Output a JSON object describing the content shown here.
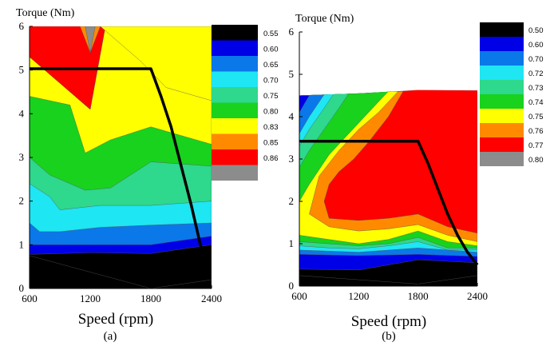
{
  "chart_data": [
    {
      "type": "contour",
      "caption": "(a)",
      "ylabel": "Torque (Nm)",
      "xlabel": "Speed (rpm)",
      "xlim": [
        600,
        2400
      ],
      "ylim": [
        0,
        6
      ],
      "x_ticks": [
        "600",
        "1200",
        "1800",
        "2400"
      ],
      "y_ticks": [
        "0",
        "1",
        "2",
        "3",
        "4",
        "5",
        "6"
      ],
      "levels": [
        {
          "label": "0.55",
          "color": "#000000"
        },
        {
          "label": "0.60",
          "color": "#0000e6"
        },
        {
          "label": "0.65",
          "color": "#0a78e8"
        },
        {
          "label": "0.70",
          "color": "#1ee6f2"
        },
        {
          "label": "0.75",
          "color": "#2ed88c"
        },
        {
          "label": "0.80",
          "color": "#18d21e"
        },
        {
          "label": "0.83",
          "color": "#ffff00"
        },
        {
          "label": "0.85",
          "color": "#ff8a00"
        },
        {
          "label": "0.86",
          "color": "#ff0000"
        },
        {
          "label": "",
          "color": "#8c8c8c"
        }
      ],
      "regions": [
        {
          "level": 6,
          "points": [
            [
              600,
              6
            ],
            [
              2400,
              6
            ],
            [
              2400,
              0
            ],
            [
              600,
              0
            ]
          ]
        },
        {
          "level": 7,
          "points": [
            [
              600,
              6
            ],
            [
              1350,
              6
            ],
            [
              1200,
              4.1
            ],
            [
              1000,
              4.5
            ],
            [
              600,
              5.3
            ]
          ]
        },
        {
          "level": 8,
          "points": [
            [
              600,
              6
            ],
            [
              1100,
              6
            ],
            [
              1200,
              5.4
            ],
            [
              1300,
              6
            ],
            [
              1350,
              6
            ],
            [
              1200,
              4.1
            ],
            [
              1000,
              4.5
            ],
            [
              600,
              5.3
            ]
          ]
        },
        {
          "level": 9,
          "points": [
            [
              1150,
              6
            ],
            [
              1200,
              5.4
            ],
            [
              1250,
              6
            ]
          ]
        },
        {
          "level": 6,
          "points": [
            [
              1500,
              6
            ],
            [
              2400,
              6
            ],
            [
              2400,
              4.3
            ],
            [
              1950,
              4.6
            ],
            [
              1700,
              5.2
            ],
            [
              1300,
              6
            ]
          ]
        },
        {
          "level": 5,
          "points": [
            [
              600,
              4.4
            ],
            [
              1000,
              4.2
            ],
            [
              1150,
              3.1
            ],
            [
              1400,
              3.4
            ],
            [
              1800,
              3.7
            ],
            [
              2400,
              3.3
            ],
            [
              2400,
              0
            ],
            [
              600,
              0
            ]
          ]
        },
        {
          "level": 4,
          "points": [
            [
              600,
              3.0
            ],
            [
              800,
              2.6
            ],
            [
              1000,
              2.4
            ],
            [
              1150,
              2.25
            ],
            [
              1400,
              2.3
            ],
            [
              1800,
              2.9
            ],
            [
              2400,
              2.8
            ],
            [
              2400,
              0
            ],
            [
              600,
              0
            ]
          ]
        },
        {
          "level": 3,
          "points": [
            [
              600,
              2.4
            ],
            [
              800,
              2.1
            ],
            [
              900,
              1.8
            ],
            [
              1300,
              1.9
            ],
            [
              1800,
              1.9
            ],
            [
              2400,
              2.0
            ],
            [
              2400,
              0
            ],
            [
              600,
              0
            ]
          ]
        },
        {
          "level": 2,
          "points": [
            [
              600,
              1.5
            ],
            [
              700,
              1.3
            ],
            [
              900,
              1.3
            ],
            [
              1300,
              1.4
            ],
            [
              1800,
              1.45
            ],
            [
              2400,
              1.5
            ],
            [
              2400,
              0
            ],
            [
              600,
              0
            ]
          ]
        },
        {
          "level": 1,
          "points": [
            [
              600,
              1.0
            ],
            [
              1200,
              1.0
            ],
            [
              1800,
              1.0
            ],
            [
              2400,
              1.2
            ],
            [
              2400,
              0
            ],
            [
              600,
              0
            ]
          ]
        },
        {
          "level": 0,
          "points": [
            [
              600,
              0.78
            ],
            [
              1200,
              0.82
            ],
            [
              1800,
              0.8
            ],
            [
              2400,
              1.0
            ],
            [
              2400,
              0
            ],
            [
              600,
              0
            ]
          ]
        },
        {
          "level": -1,
          "points": [
            [
              600,
              0.75
            ],
            [
              1800,
              0.0
            ],
            [
              600,
              0.0
            ]
          ]
        },
        {
          "level": -1,
          "points": [
            [
              1800,
              0
            ],
            [
              2400,
              0
            ],
            [
              2400,
              0.2
            ]
          ]
        }
      ],
      "boundary_curve": [
        [
          600,
          5.03
        ],
        [
          1800,
          5.03
        ],
        [
          1900,
          4.4
        ],
        [
          2000,
          3.7
        ],
        [
          2100,
          2.8
        ],
        [
          2200,
          1.9
        ],
        [
          2300,
          0.9
        ]
      ]
    },
    {
      "type": "contour",
      "caption": "(b)",
      "ylabel": "Torque (Nm)",
      "xlabel": "Speed (rpm)",
      "xlim": [
        600,
        2400
      ],
      "ylim": [
        0,
        6
      ],
      "x_ticks": [
        "600",
        "1200",
        "1800",
        "2400"
      ],
      "y_ticks": [
        "0",
        "1",
        "2",
        "3",
        "4",
        "5",
        "6"
      ],
      "levels": [
        {
          "label": "0.50",
          "color": "#000000"
        },
        {
          "label": "0.60",
          "color": "#0000e6"
        },
        {
          "label": "0.70",
          "color": "#0a78e8"
        },
        {
          "label": "0.72",
          "color": "#1ee6f2"
        },
        {
          "label": "0.73",
          "color": "#2ed88c"
        },
        {
          "label": "0.74",
          "color": "#18d21e"
        },
        {
          "label": "0.75",
          "color": "#ffff00"
        },
        {
          "label": "0.76",
          "color": "#ff8a00"
        },
        {
          "label": "0.77",
          "color": "#ff0000"
        },
        {
          "label": "0.80",
          "color": "#8c8c8c"
        }
      ],
      "envelope_top": [
        [
          600,
          4.5
        ],
        [
          1200,
          4.55
        ],
        [
          1800,
          4.63
        ],
        [
          2400,
          4.62
        ]
      ],
      "regions": [
        {
          "level": 8,
          "points": [
            [
              600,
              4.5
            ],
            [
              1200,
              4.55
            ],
            [
              1800,
              4.63
            ],
            [
              2400,
              4.62
            ],
            [
              2400,
              0
            ],
            [
              600,
              0
            ]
          ]
        },
        {
          "level": 7,
          "points": [
            [
              600,
              4.5
            ],
            [
              1200,
              4.55
            ],
            [
              1650,
              4.6
            ],
            [
              1500,
              4.0
            ],
            [
              1300,
              3.4
            ],
            [
              1150,
              3.0
            ],
            [
              1000,
              2.7
            ],
            [
              900,
              2.4
            ],
            [
              850,
              2.0
            ],
            [
              900,
              1.6
            ],
            [
              1200,
              1.55
            ],
            [
              1500,
              1.6
            ],
            [
              1800,
              1.7
            ],
            [
              2100,
              1.4
            ],
            [
              2400,
              1.25
            ],
            [
              2400,
              0
            ],
            [
              600,
              0
            ]
          ]
        },
        {
          "level": 6,
          "points": [
            [
              600,
              4.5
            ],
            [
              1200,
              4.55
            ],
            [
              1600,
              4.6
            ],
            [
              1400,
              4.1
            ],
            [
              1200,
              3.7
            ],
            [
              1000,
              3.2
            ],
            [
              800,
              2.6
            ],
            [
              700,
              1.7
            ],
            [
              900,
              1.4
            ],
            [
              1200,
              1.3
            ],
            [
              1500,
              1.35
            ],
            [
              1800,
              1.45
            ],
            [
              2100,
              1.2
            ],
            [
              2400,
              1.05
            ],
            [
              2400,
              0
            ],
            [
              600,
              0
            ]
          ]
        },
        {
          "level": 5,
          "points": [
            [
              600,
              4.5
            ],
            [
              1200,
              4.55
            ],
            [
              1500,
              4.6
            ],
            [
              1300,
              4.1
            ],
            [
              1100,
              3.6
            ],
            [
              900,
              3.1
            ],
            [
              700,
              2.4
            ],
            [
              600,
              2.0
            ],
            [
              600,
              1.2
            ],
            [
              900,
              1.1
            ],
            [
              1200,
              1.0
            ],
            [
              1500,
              1.1
            ],
            [
              1800,
              1.3
            ],
            [
              2100,
              1.05
            ],
            [
              2400,
              0.95
            ],
            [
              2400,
              0
            ],
            [
              600,
              0
            ]
          ]
        },
        {
          "level": 4,
          "points": [
            [
              600,
              4.5
            ],
            [
              1100,
              4.55
            ],
            [
              1000,
              4.2
            ],
            [
              850,
              3.7
            ],
            [
              700,
              3.2
            ],
            [
              600,
              2.8
            ],
            [
              600,
              1.05
            ],
            [
              900,
              1.0
            ],
            [
              1200,
              0.95
            ],
            [
              1500,
              1.0
            ],
            [
              1800,
              1.15
            ],
            [
              2100,
              0.9
            ],
            [
              2400,
              0.9
            ],
            [
              2400,
              0
            ],
            [
              600,
              0
            ]
          ]
        },
        {
          "level": 3,
          "points": [
            [
              600,
              4.5
            ],
            [
              950,
              4.55
            ],
            [
              850,
              4.2
            ],
            [
              700,
              3.7
            ],
            [
              600,
              3.3
            ],
            [
              600,
              0.95
            ],
            [
              900,
              0.9
            ],
            [
              1200,
              0.88
            ],
            [
              1500,
              0.95
            ],
            [
              1800,
              1.05
            ],
            [
              2100,
              0.85
            ],
            [
              2400,
              0.85
            ],
            [
              2400,
              0
            ],
            [
              600,
              0
            ]
          ]
        },
        {
          "level": 2,
          "points": [
            [
              600,
              4.5
            ],
            [
              850,
              4.52
            ],
            [
              700,
              4.0
            ],
            [
              600,
              3.6
            ],
            [
              600,
              0.85
            ],
            [
              1200,
              0.8
            ],
            [
              1800,
              0.9
            ],
            [
              2400,
              0.8
            ],
            [
              2400,
              0
            ],
            [
              600,
              0
            ]
          ]
        },
        {
          "level": 1,
          "points": [
            [
              600,
              4.5
            ],
            [
              700,
              4.5
            ],
            [
              600,
              4.1
            ],
            [
              600,
              0.75
            ],
            [
              1200,
              0.72
            ],
            [
              1800,
              0.75
            ],
            [
              2400,
              0.7
            ],
            [
              2400,
              0
            ],
            [
              600,
              0
            ]
          ]
        },
        {
          "level": 0,
          "points": [
            [
              600,
              0.4
            ],
            [
              1200,
              0.38
            ],
            [
              1800,
              0.62
            ],
            [
              2400,
              0.55
            ],
            [
              2400,
              0
            ],
            [
              600,
              0
            ]
          ]
        },
        {
          "level": -1,
          "points": [
            [
              600,
              0.25
            ],
            [
              1200,
              0.15
            ],
            [
              1800,
              0.05
            ],
            [
              2400,
              0.25
            ],
            [
              2400,
              0
            ],
            [
              600,
              0
            ]
          ]
        }
      ],
      "boundary_curve": [
        [
          600,
          3.42
        ],
        [
          1800,
          3.42
        ],
        [
          1900,
          2.9
        ],
        [
          2000,
          2.3
        ],
        [
          2100,
          1.7
        ],
        [
          2200,
          1.2
        ],
        [
          2300,
          0.8
        ],
        [
          2400,
          0.5
        ]
      ]
    }
  ]
}
